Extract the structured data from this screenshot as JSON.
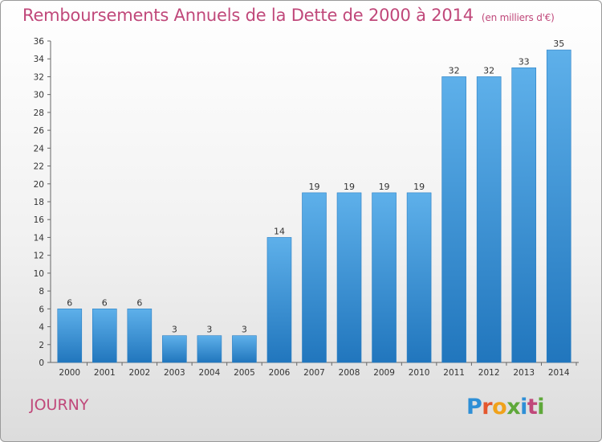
{
  "header": {
    "title": "Remboursements Annuels de la Dette de 2000 à 2014",
    "subtitle": "(en milliers d'€)"
  },
  "footer": {
    "town": "JOURNY",
    "logo": "Proxiti"
  },
  "colors": {
    "title": "#c0487a",
    "bar_top": "#5eb0ea",
    "bar_bottom": "#2176bd"
  },
  "chart_data": {
    "type": "bar",
    "title": "Remboursements Annuels de la Dette de 2000 à 2014",
    "subtitle": "(en milliers d'€)",
    "categories": [
      "2000",
      "2001",
      "2002",
      "2003",
      "2004",
      "2005",
      "2006",
      "2007",
      "2008",
      "2009",
      "2010",
      "2011",
      "2012",
      "2013",
      "2014"
    ],
    "values": [
      6,
      6,
      6,
      3,
      3,
      3,
      14,
      19,
      19,
      19,
      19,
      32,
      32,
      33,
      35
    ],
    "ylim": [
      0,
      36
    ],
    "yticks": [
      0,
      2,
      4,
      6,
      8,
      10,
      12,
      14,
      16,
      18,
      20,
      22,
      24,
      26,
      28,
      30,
      32,
      34,
      36
    ],
    "grid": false,
    "data_labels": true
  }
}
